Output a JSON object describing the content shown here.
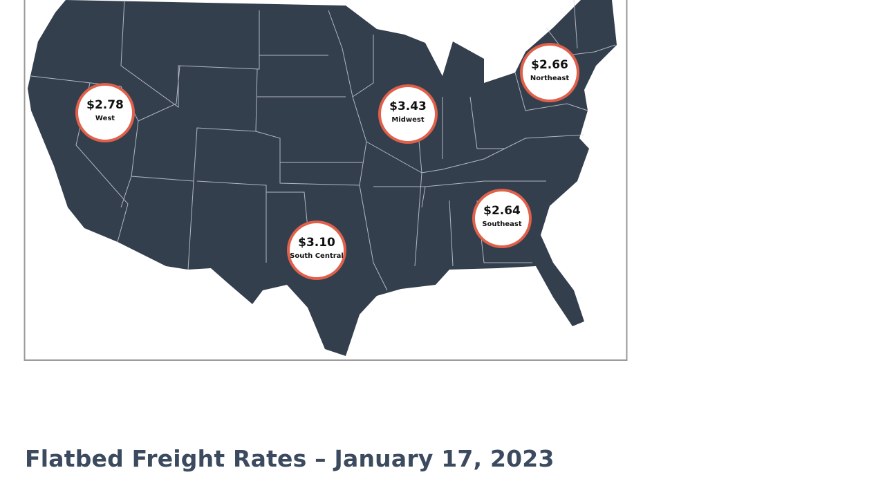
{
  "map": {
    "regions": [
      {
        "price": "$2.78",
        "name": "West"
      },
      {
        "price": "$3.43",
        "name": "Midwest"
      },
      {
        "price": "$2.66",
        "name": "Northeast"
      },
      {
        "price": "$3.10",
        "name": "South Central"
      },
      {
        "price": "$2.64",
        "name": "Southeast"
      }
    ]
  },
  "caption": {
    "title": "Flatbed Freight Rates – January 17, 2023"
  }
}
